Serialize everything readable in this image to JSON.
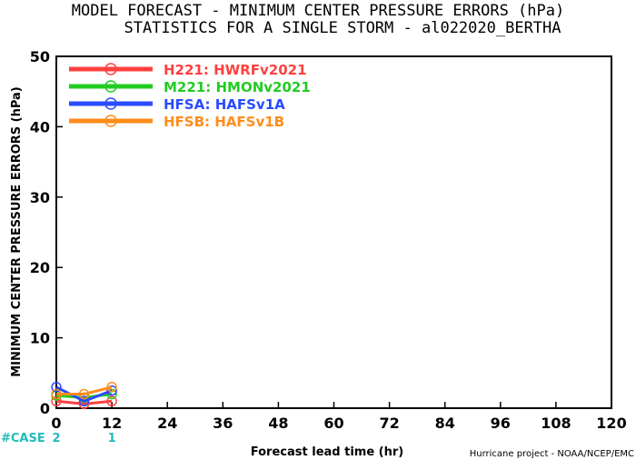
{
  "chart_data": {
    "type": "line",
    "title": "MODEL FORECAST - MINIMUM CENTER PRESSURE ERRORS (hPa)",
    "subtitle": "STATISTICS FOR A SINGLE STORM - al022020_BERTHA",
    "xlabel": "Forecast lead time (hr)",
    "ylabel": "MINIMUM CENTER PRESSURE ERRORS (hPa)",
    "xlim": [
      0,
      120
    ],
    "ylim": [
      0,
      50
    ],
    "x_ticks": [
      "0",
      "12",
      "24",
      "36",
      "48",
      "60",
      "72",
      "84",
      "96",
      "108",
      "120"
    ],
    "y_ticks": [
      "0",
      "10",
      "20",
      "30",
      "40",
      "50"
    ],
    "x": [
      0,
      6,
      12
    ],
    "series": [
      {
        "name": "H221: HWRFv2021",
        "color": "#ff4040",
        "values": [
          1.0,
          0.6,
          1.0
        ]
      },
      {
        "name": "M221: HMONv2021",
        "color": "#22cc22",
        "values": [
          1.8,
          1.5,
          2.0
        ]
      },
      {
        "name": "HFSA: HAFSv1A",
        "color": "#2a4bff",
        "values": [
          3.0,
          1.0,
          2.5
        ]
      },
      {
        "name": "HFSB: HAFSv1B",
        "color": "#ff8c1a",
        "values": [
          2.0,
          2.0,
          3.0
        ]
      }
    ],
    "grid": false,
    "legend_placement": "top-left",
    "case_counts": {
      "label": "#CASE",
      "color": "#22bbbb",
      "items": [
        {
          "x": 0,
          "count": "2"
        },
        {
          "x": 12,
          "count": "1"
        }
      ]
    }
  },
  "credit": "Hurricane project - NOAA/NCEP/EMC"
}
